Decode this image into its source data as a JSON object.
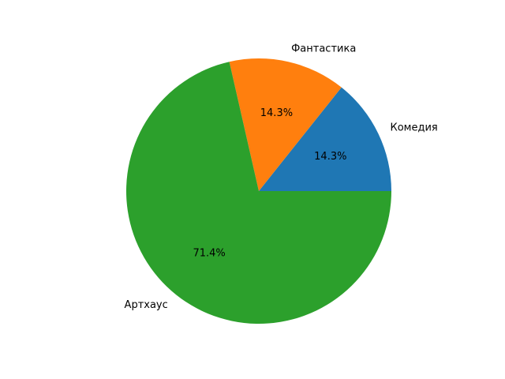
{
  "chart_data": {
    "type": "pie",
    "categories": [
      "Комедия",
      "Фантастика",
      "Артхаус"
    ],
    "values": [
      1,
      1,
      5
    ],
    "percent_labels": [
      "14.3%",
      "14.3%",
      "71.4%"
    ],
    "colors": [
      "#1f77b4",
      "#ff7f0e",
      "#2ca02c"
    ],
    "start_angle_deg": 0,
    "direction": "counterclockwise",
    "title": ""
  }
}
